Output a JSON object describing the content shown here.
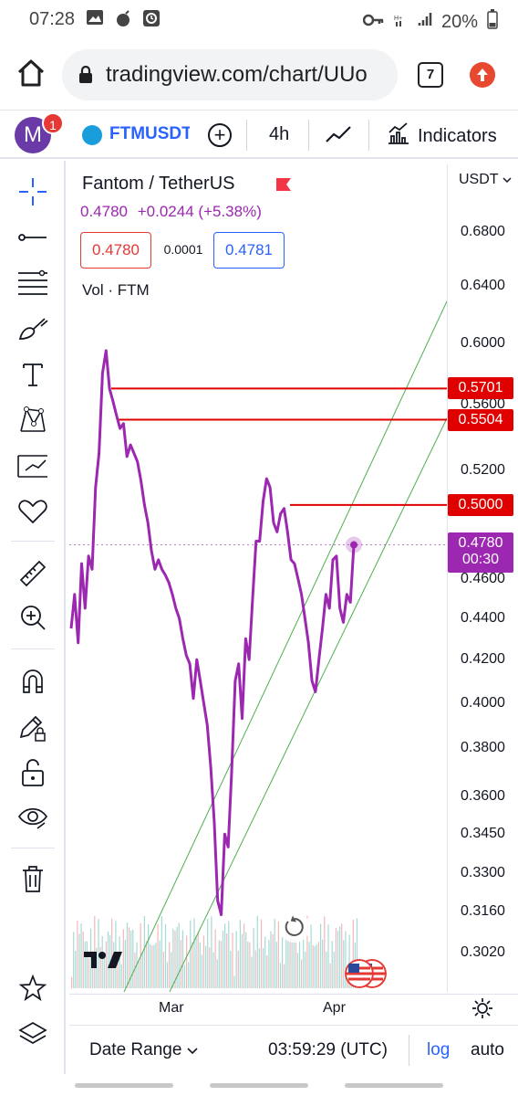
{
  "status_bar": {
    "time": "07:28",
    "battery": "20%",
    "icons_left": [
      "image-icon",
      "bomb-icon",
      "clock-app-icon"
    ],
    "icons_right": [
      "key-icon",
      "wifi-icon",
      "signal-icon",
      "battery-icon"
    ]
  },
  "browser": {
    "url": "tradingview.com/chart/UUo",
    "tab_count": "7"
  },
  "toolbar": {
    "avatar_letter": "M",
    "notification_count": "1",
    "symbol": "FTMUSDT",
    "interval": "4h",
    "indicators_label": "Indicators"
  },
  "legend": {
    "title": "Fantom / TetherUS",
    "price": "0.4780",
    "change": "+0.0244",
    "change_pct": "(+5.38%)",
    "sell_price": "0.4780",
    "spread": "0.0001",
    "buy_price": "0.4781",
    "volume_label": "Vol · FTM"
  },
  "price_axis": {
    "currency": "USDT",
    "labels": [
      "0.6800",
      "0.6400",
      "0.6000",
      "0.5600",
      "0.5200",
      "0.4600",
      "0.4400",
      "0.4200",
      "0.4000",
      "0.3800",
      "0.3600",
      "0.3450",
      "0.3300",
      "0.3160",
      "0.3020"
    ],
    "horizontal_lines": [
      "0.5701",
      "0.5504",
      "0.5000"
    ],
    "last_price": "0.4780",
    "countdown": "00:30",
    "line_color": "#e00000",
    "price_color": "#9c27b0"
  },
  "time_axis": {
    "labels": [
      "Mar",
      "Apr"
    ]
  },
  "bottom_bar": {
    "date_range": "Date Range",
    "utc_time": "03:59:29 (UTC)",
    "log": "log",
    "auto": "auto"
  },
  "chart_data": {
    "type": "line",
    "title": "Fantom / TetherUS",
    "series": [
      {
        "name": "FTMUSDT",
        "values": [
          0.435,
          0.452,
          0.428,
          0.468,
          0.445,
          0.472,
          0.465,
          0.51,
          0.53,
          0.58,
          0.595,
          0.57,
          0.562,
          0.553,
          0.545,
          0.548,
          0.528,
          0.535,
          0.53,
          0.525,
          0.514,
          0.5,
          0.49,
          0.475,
          0.465,
          0.47,
          0.465,
          0.462,
          0.458,
          0.452,
          0.445,
          0.44,
          0.43,
          0.422,
          0.418,
          0.402,
          0.42,
          0.41,
          0.4,
          0.39,
          0.372,
          0.35,
          0.32,
          0.315,
          0.345,
          0.34,
          0.37,
          0.41,
          0.418,
          0.393,
          0.43,
          0.42,
          0.45,
          0.48,
          0.48,
          0.502,
          0.515,
          0.51,
          0.49,
          0.485,
          0.495,
          0.498,
          0.485,
          0.47,
          0.468,
          0.46,
          0.452,
          0.44,
          0.428,
          0.41,
          0.405,
          0.42,
          0.435,
          0.452,
          0.445,
          0.47,
          0.472,
          0.445,
          0.438,
          0.452,
          0.448,
          0.478
        ]
      }
    ],
    "ylim": [
      0.296,
      0.69
    ],
    "scale": "log",
    "xlabels": [
      "Mar",
      "Apr"
    ]
  }
}
